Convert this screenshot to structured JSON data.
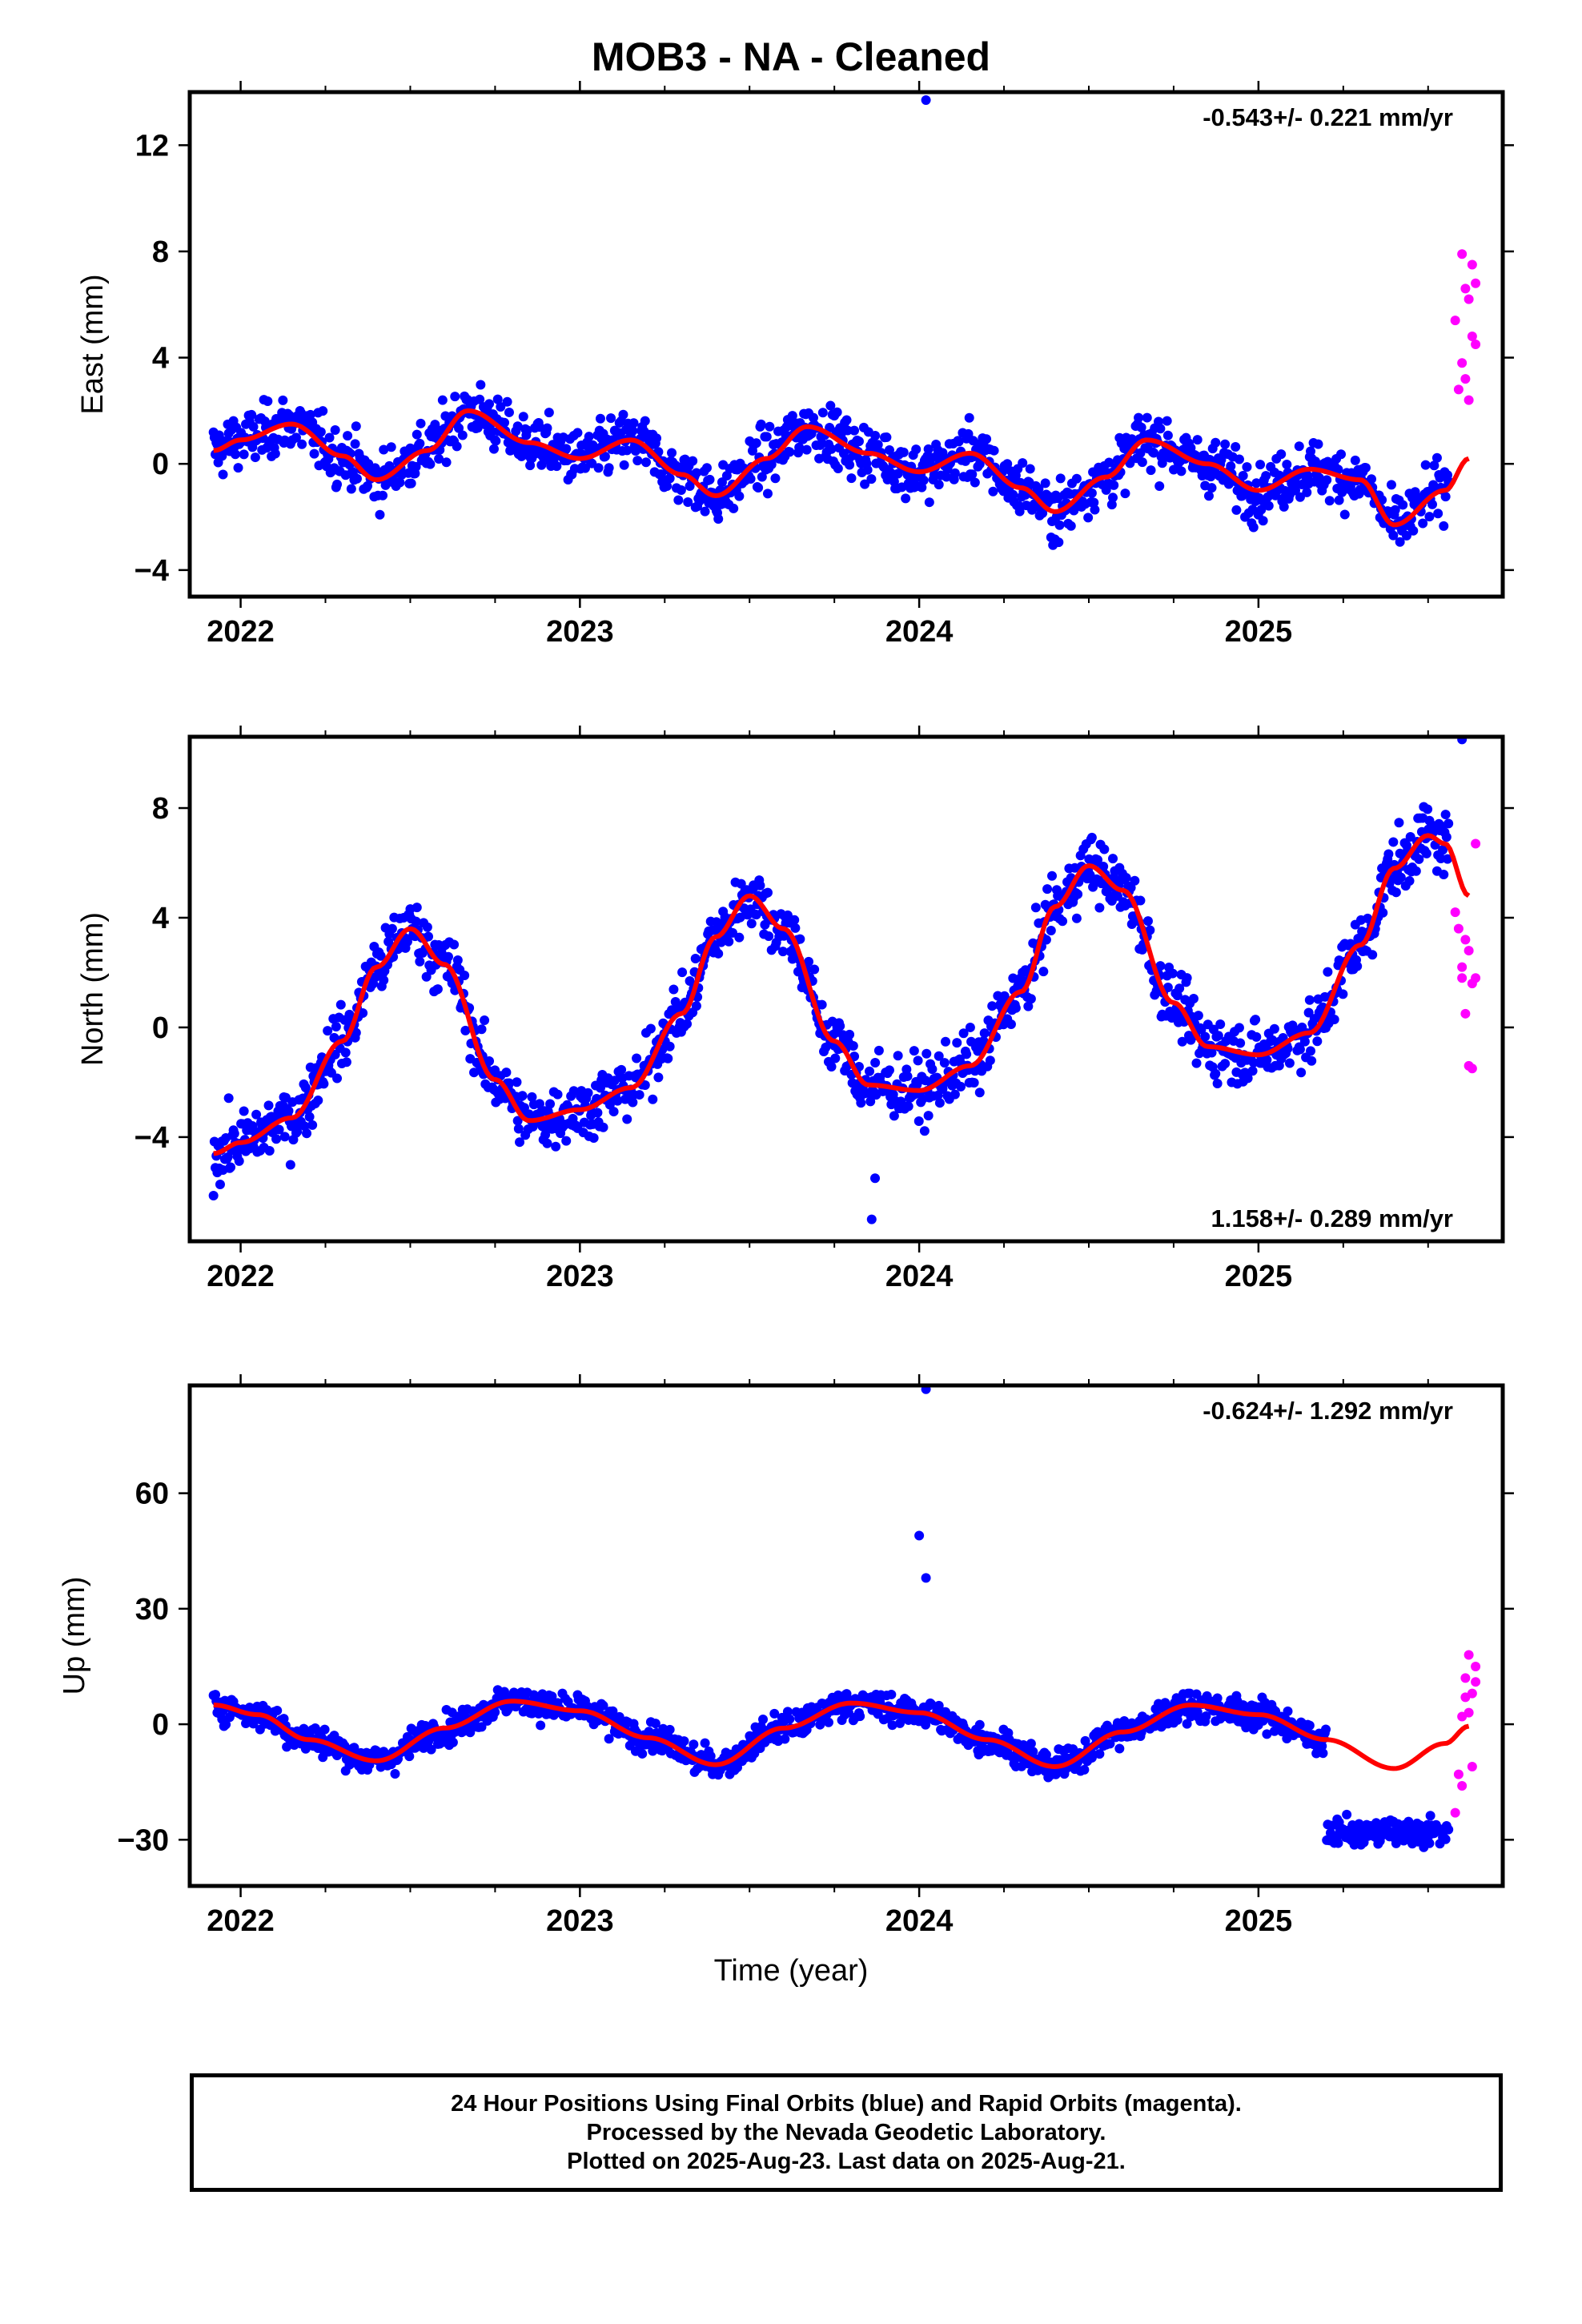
{
  "title": "MOB3  - NA - Cleaned",
  "x_axis_title": "Time (year)",
  "footer": {
    "line1": "24 Hour Positions Using Final Orbits (blue) and Rapid Orbits (magenta).",
    "line2": "Processed by the Nevada Geodetic Laboratory.",
    "line3": "Plotted on 2025-Aug-23. Last data on 2025-Aug-21."
  },
  "colors": {
    "final": "#0000ff",
    "rapid": "#ff00ff",
    "model": "#ff0000",
    "axis": "#000000"
  },
  "chart_data": [
    {
      "type": "scatter",
      "component": "east",
      "ylabel": "East (mm)",
      "rate": "-0.543+/- 0.221 mm/yr",
      "rate_position": "top-right",
      "xlim": [
        2021.85,
        2025.72
      ],
      "ylim": [
        -5,
        14
      ],
      "yticks": [
        -4,
        0,
        4,
        8,
        12
      ],
      "xticks": [
        2022,
        2023,
        2024,
        2025
      ],
      "model": {
        "x": [
          2021.92,
          2022.0,
          2022.15,
          2022.3,
          2022.4,
          2022.55,
          2022.67,
          2022.85,
          2023.0,
          2023.15,
          2023.3,
          2023.4,
          2023.55,
          2023.67,
          2023.85,
          2024.0,
          2024.15,
          2024.3,
          2024.4,
          2024.55,
          2024.67,
          2024.85,
          2025.0,
          2025.15,
          2025.3,
          2025.4,
          2025.55,
          2025.62
        ],
        "y": [
          0.5,
          0.9,
          1.5,
          0.3,
          -0.6,
          0.5,
          2.0,
          0.8,
          0.2,
          0.9,
          -0.4,
          -1.2,
          0.2,
          1.4,
          0.4,
          -0.3,
          0.4,
          -0.9,
          -1.8,
          -0.5,
          0.9,
          0.0,
          -1.0,
          -0.2,
          -0.6,
          -2.3,
          -1.0,
          0.2
        ]
      },
      "outliers": [
        {
          "x": 2024.02,
          "y": 13.7
        }
      ],
      "noise_amplitude": 1.1,
      "rapid": {
        "x": [
          2025.58,
          2025.59,
          2025.6,
          2025.6,
          2025.61,
          2025.61,
          2025.62,
          2025.62,
          2025.63,
          2025.63,
          2025.64,
          2025.64
        ],
        "y": [
          5.4,
          2.8,
          7.9,
          3.8,
          6.6,
          3.2,
          6.2,
          2.4,
          4.8,
          7.5,
          6.8,
          4.5
        ]
      }
    },
    {
      "type": "scatter",
      "component": "north",
      "ylabel": "North (mm)",
      "rate": "1.158+/- 0.289 mm/yr",
      "rate_position": "bottom-right",
      "xlim": [
        2021.85,
        2025.72
      ],
      "ylim": [
        -7.8,
        10.6
      ],
      "yticks": [
        -4,
        0,
        4,
        8
      ],
      "xticks": [
        2022,
        2023,
        2024,
        2025
      ],
      "model": {
        "x": [
          2021.92,
          2022.0,
          2022.15,
          2022.3,
          2022.4,
          2022.5,
          2022.6,
          2022.75,
          2022.85,
          2023.0,
          2023.15,
          2023.3,
          2023.4,
          2023.5,
          2023.6,
          2023.75,
          2023.85,
          2024.0,
          2024.15,
          2024.3,
          2024.4,
          2024.5,
          2024.6,
          2024.75,
          2024.85,
          2025.0,
          2025.15,
          2025.3,
          2025.4,
          2025.5,
          2025.55,
          2025.62
        ],
        "y": [
          -4.6,
          -4.2,
          -3.3,
          -0.5,
          2.2,
          3.6,
          2.3,
          -1.9,
          -3.4,
          -3.0,
          -2.2,
          0.5,
          3.3,
          4.8,
          3.6,
          -0.5,
          -2.1,
          -2.3,
          -1.4,
          1.3,
          4.4,
          5.9,
          5.0,
          0.9,
          -0.7,
          -1.0,
          -0.2,
          3.0,
          5.8,
          7.0,
          6.7,
          4.8
        ]
      },
      "outliers": [
        {
          "x": 2023.86,
          "y": -7.0
        },
        {
          "x": 2023.87,
          "y": -5.5
        },
        {
          "x": 2025.6,
          "y": 10.5
        }
      ],
      "noise_amplitude": 1.2,
      "rapid": {
        "x": [
          2025.58,
          2025.59,
          2025.6,
          2025.6,
          2025.61,
          2025.61,
          2025.62,
          2025.62,
          2025.63,
          2025.63,
          2025.64,
          2025.64
        ],
        "y": [
          4.2,
          3.6,
          2.2,
          1.8,
          3.2,
          0.5,
          2.8,
          -1.4,
          1.6,
          -1.5,
          6.7,
          1.8
        ]
      }
    },
    {
      "type": "scatter",
      "component": "up",
      "ylabel": "Up (mm)",
      "rate": "-0.624+/- 1.292 mm/yr",
      "rate_position": "top-right",
      "xlim": [
        2021.85,
        2025.72
      ],
      "ylim": [
        -42,
        88
      ],
      "yticks": [
        -30,
        0,
        30,
        60
      ],
      "xticks": [
        2022,
        2023,
        2024,
        2025
      ],
      "model": {
        "x": [
          2021.92,
          2022.05,
          2022.2,
          2022.4,
          2022.6,
          2022.8,
          2023.0,
          2023.2,
          2023.4,
          2023.6,
          2023.8,
          2024.0,
          2024.2,
          2024.4,
          2024.6,
          2024.8,
          2025.0,
          2025.2,
          2025.4,
          2025.55,
          2025.62
        ],
        "y": [
          5.0,
          2.5,
          -4.0,
          -9.5,
          -1.0,
          6.0,
          3.5,
          -3.5,
          -10.5,
          -1.0,
          5.5,
          3.0,
          -4.0,
          -11.0,
          -2.0,
          5.0,
          2.5,
          -4.0,
          -11.5,
          -5.0,
          -0.5
        ]
      },
      "outliers": [
        {
          "x": 2024.0,
          "y": 49
        },
        {
          "x": 2024.02,
          "y": 38
        },
        {
          "x": 2024.02,
          "y": 87
        }
      ],
      "offset_after": {
        "x": 2025.2,
        "y": -28
      },
      "noise_amplitude": 4.0,
      "rapid": {
        "x": [
          2025.58,
          2025.59,
          2025.6,
          2025.6,
          2025.61,
          2025.61,
          2025.62,
          2025.62,
          2025.63,
          2025.63,
          2025.64,
          2025.64
        ],
        "y": [
          -23,
          -13,
          -16,
          2,
          7,
          12,
          3,
          18,
          8,
          -11,
          15,
          11
        ]
      }
    }
  ]
}
